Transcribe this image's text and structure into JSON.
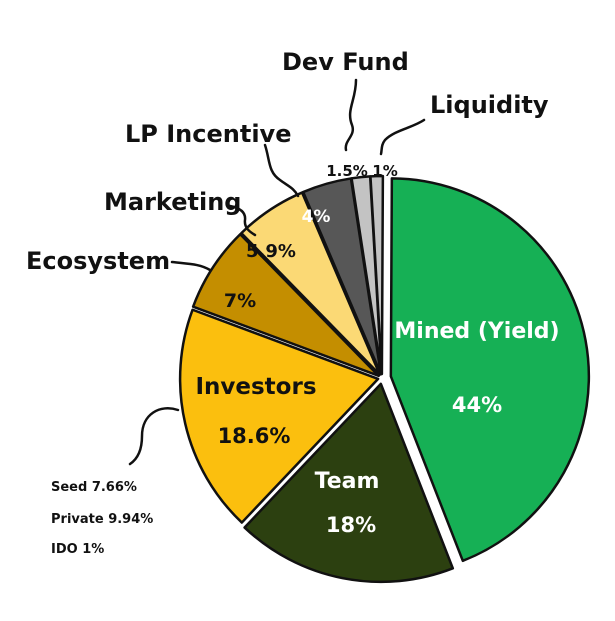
{
  "chart_data": {
    "type": "pie",
    "title": "",
    "slices": [
      {
        "label": "Mined (Yield)",
        "value": 44,
        "value_label": "44%",
        "color": "#16b055"
      },
      {
        "label": "Team",
        "value": 18,
        "value_label": "18%",
        "color": "#2c4010"
      },
      {
        "label": "Investors",
        "value": 18.6,
        "value_label": "18.6%",
        "color": "#fbbf0e"
      },
      {
        "label": "Ecosystem",
        "value": 7,
        "value_label": "7%",
        "color": "#c48e00"
      },
      {
        "label": "Marketing",
        "value": 5.9,
        "value_label": "5.9%",
        "color": "#fbd975"
      },
      {
        "label": "LP Incentive",
        "value": 4,
        "value_label": "4%",
        "color": "#575757"
      },
      {
        "label": "Dev Fund",
        "value": 1.5,
        "value_label": "1.5%",
        "color": "#c3c3c3"
      },
      {
        "label": "Liquidity",
        "value": 1,
        "value_label": "1%",
        "color": "#c3c3c3"
      }
    ],
    "investor_breakdown": [
      {
        "label": "Seed",
        "value": 7.66,
        "text": "Seed 7.66%"
      },
      {
        "label": "Private",
        "value": 9.94,
        "text": "Private 9.94%"
      },
      {
        "label": "IDO",
        "value": 1,
        "text": "IDO 1%"
      }
    ]
  }
}
